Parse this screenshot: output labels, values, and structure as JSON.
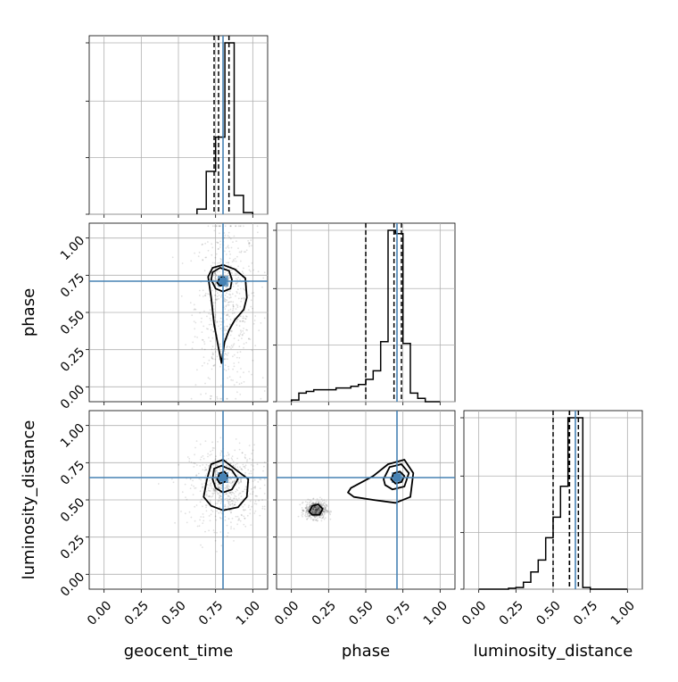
{
  "chart_data": [
    {
      "type": "histogram",
      "panel": "geocent_time-1d",
      "xlim": [
        -0.1,
        1.1
      ],
      "grid": true,
      "x_ticks": [
        0.0,
        0.25,
        0.5,
        0.75,
        1.0
      ],
      "bin_edges": [
        0.625,
        0.6875,
        0.75,
        0.8125,
        0.875,
        0.9375,
        1.0
      ],
      "counts": [
        0.03,
        0.25,
        0.45,
        1.0,
        0.11,
        0.01
      ],
      "quantile_lines": [
        0.74,
        0.84
      ],
      "median_line": 0.77,
      "truth": 0.8,
      "line_color": "#000000",
      "truth_color": "#4682b4"
    },
    {
      "type": "scatter",
      "panel": "phase-vs-geocent_time",
      "xlabel": "",
      "ylabel": "phase",
      "xlim": [
        -0.1,
        1.1
      ],
      "ylim": [
        -0.1,
        1.1
      ],
      "grid": true,
      "y_tick_labels": [
        "0.00",
        "0.25",
        "0.50",
        "0.75",
        "1.00"
      ],
      "y_ticks": [
        0.0,
        0.25,
        0.5,
        0.75,
        1.0
      ],
      "truth": {
        "x": 0.8,
        "y": 0.71
      },
      "contours": [
        [
          [
            0.76,
            0.7
          ],
          [
            0.78,
            0.73
          ],
          [
            0.8,
            0.74
          ],
          [
            0.82,
            0.72
          ],
          [
            0.81,
            0.69
          ],
          [
            0.78,
            0.68
          ]
        ],
        [
          [
            0.72,
            0.72
          ],
          [
            0.73,
            0.77
          ],
          [
            0.78,
            0.8
          ],
          [
            0.84,
            0.78
          ],
          [
            0.86,
            0.72
          ],
          [
            0.85,
            0.66
          ],
          [
            0.8,
            0.64
          ],
          [
            0.75,
            0.66
          ]
        ],
        [
          [
            0.7,
            0.74
          ],
          [
            0.73,
            0.8
          ],
          [
            0.8,
            0.82
          ],
          [
            0.88,
            0.79
          ],
          [
            0.95,
            0.73
          ],
          [
            0.96,
            0.6
          ],
          [
            0.94,
            0.52
          ],
          [
            0.88,
            0.45
          ],
          [
            0.84,
            0.38
          ],
          [
            0.81,
            0.3
          ],
          [
            0.79,
            0.16
          ],
          [
            0.77,
            0.26
          ],
          [
            0.74,
            0.42
          ],
          [
            0.72,
            0.6
          ]
        ]
      ],
      "point_color": "#000000",
      "truth_color": "#4682b4"
    },
    {
      "type": "histogram",
      "panel": "phase-1d",
      "xlim": [
        -0.1,
        1.1
      ],
      "grid": true,
      "x_ticks": [
        0.0,
        0.25,
        0.5,
        0.75,
        1.0
      ],
      "bin_edges": [
        0.0,
        0.05,
        0.1,
        0.15,
        0.2,
        0.25,
        0.3,
        0.35,
        0.4,
        0.45,
        0.5,
        0.55,
        0.6,
        0.65,
        0.7,
        0.75,
        0.8,
        0.85,
        0.9,
        0.95,
        1.0
      ],
      "counts": [
        0.01,
        0.05,
        0.06,
        0.07,
        0.07,
        0.07,
        0.08,
        0.08,
        0.09,
        0.1,
        0.13,
        0.18,
        0.35,
        1.0,
        0.98,
        0.34,
        0.05,
        0.02,
        0.0,
        0.0
      ],
      "quantile_lines": [
        0.5,
        0.74
      ],
      "median_line": 0.69,
      "truth": 0.71,
      "line_color": "#000000",
      "truth_color": "#4682b4"
    },
    {
      "type": "scatter",
      "panel": "luminosity_distance-vs-geocent_time",
      "xlabel": "geocent_time",
      "ylabel": "luminosity_distance",
      "xlim": [
        -0.1,
        1.1
      ],
      "ylim": [
        -0.1,
        1.1
      ],
      "grid": true,
      "x_tick_labels": [
        "0.00",
        "0.25",
        "0.50",
        "0.75",
        "1.00"
      ],
      "y_tick_labels": [
        "0.00",
        "0.25",
        "0.50",
        "0.75",
        "1.00"
      ],
      "ticks": [
        0.0,
        0.25,
        0.5,
        0.75,
        1.0
      ],
      "truth": {
        "x": 0.8,
        "y": 0.65
      },
      "contours": [
        [
          [
            0.76,
            0.64
          ],
          [
            0.78,
            0.68
          ],
          [
            0.81,
            0.69
          ],
          [
            0.83,
            0.66
          ],
          [
            0.81,
            0.62
          ],
          [
            0.78,
            0.61
          ]
        ],
        [
          [
            0.73,
            0.64
          ],
          [
            0.74,
            0.71
          ],
          [
            0.79,
            0.73
          ],
          [
            0.86,
            0.7
          ],
          [
            0.9,
            0.64
          ],
          [
            0.86,
            0.57
          ],
          [
            0.8,
            0.55
          ],
          [
            0.75,
            0.58
          ]
        ],
        [
          [
            0.69,
            0.63
          ],
          [
            0.72,
            0.74
          ],
          [
            0.8,
            0.77
          ],
          [
            0.89,
            0.7
          ],
          [
            0.97,
            0.64
          ],
          [
            0.96,
            0.52
          ],
          [
            0.9,
            0.45
          ],
          [
            0.8,
            0.43
          ],
          [
            0.72,
            0.46
          ],
          [
            0.67,
            0.52
          ]
        ]
      ],
      "point_color": "#000000",
      "truth_color": "#4682b4"
    },
    {
      "type": "scatter",
      "panel": "luminosity_distance-vs-phase",
      "xlabel": "phase",
      "ylabel": "",
      "xlim": [
        -0.1,
        1.1
      ],
      "ylim": [
        -0.1,
        1.1
      ],
      "grid": true,
      "x_tick_labels": [
        "0.00",
        "0.25",
        "0.50",
        "0.75",
        "1.00"
      ],
      "ticks": [
        0.0,
        0.25,
        0.5,
        0.75,
        1.0
      ],
      "truth": {
        "x": 0.71,
        "y": 0.65
      },
      "contours": [
        [
          [
            0.67,
            0.64
          ],
          [
            0.69,
            0.68
          ],
          [
            0.73,
            0.69
          ],
          [
            0.76,
            0.66
          ],
          [
            0.74,
            0.62
          ],
          [
            0.7,
            0.61
          ]
        ],
        [
          [
            0.62,
            0.64
          ],
          [
            0.66,
            0.72
          ],
          [
            0.74,
            0.74
          ],
          [
            0.79,
            0.68
          ],
          [
            0.76,
            0.59
          ],
          [
            0.68,
            0.57
          ],
          [
            0.63,
            0.6
          ]
        ],
        [
          [
            0.4,
            0.58
          ],
          [
            0.55,
            0.66
          ],
          [
            0.65,
            0.74
          ],
          [
            0.76,
            0.77
          ],
          [
            0.82,
            0.68
          ],
          [
            0.8,
            0.52
          ],
          [
            0.7,
            0.48
          ],
          [
            0.55,
            0.5
          ],
          [
            0.42,
            0.52
          ],
          [
            0.38,
            0.55
          ]
        ],
        [
          [
            0.12,
            0.42
          ],
          [
            0.14,
            0.46
          ],
          [
            0.18,
            0.47
          ],
          [
            0.21,
            0.44
          ],
          [
            0.19,
            0.4
          ],
          [
            0.14,
            0.4
          ]
        ]
      ],
      "point_color": "#000000",
      "truth_color": "#4682b4"
    },
    {
      "type": "histogram",
      "panel": "luminosity_distance-1d",
      "xlim": [
        -0.1,
        1.1
      ],
      "grid": true,
      "x_ticks": [
        0.0,
        0.25,
        0.5,
        0.75,
        1.0
      ],
      "bin_edges": [
        0.0,
        0.05,
        0.1,
        0.15,
        0.2,
        0.25,
        0.3,
        0.35,
        0.4,
        0.45,
        0.5,
        0.55,
        0.6,
        0.65,
        0.7,
        0.75,
        0.8,
        0.85,
        0.9,
        0.95,
        1.0
      ],
      "counts": [
        0.0,
        0.0,
        0.0,
        0.0,
        0.005,
        0.01,
        0.04,
        0.1,
        0.17,
        0.3,
        0.42,
        0.6,
        1.0,
        1.0,
        0.01,
        0.0,
        0.0,
        0.0,
        0.0,
        0.0
      ],
      "quantile_lines": [
        0.5,
        0.61,
        0.67
      ],
      "median_line": 0.61,
      "truth": 0.65,
      "line_color": "#000000",
      "truth_color": "#4682b4"
    }
  ],
  "labels": {
    "x_geocent": "geocent_time",
    "x_phase": "phase",
    "x_lum": "luminosity_distance",
    "y_phase": "phase",
    "y_lum": "luminosity_distance"
  },
  "tick_labels": [
    "0.00",
    "0.25",
    "0.50",
    "0.75",
    "1.00"
  ]
}
